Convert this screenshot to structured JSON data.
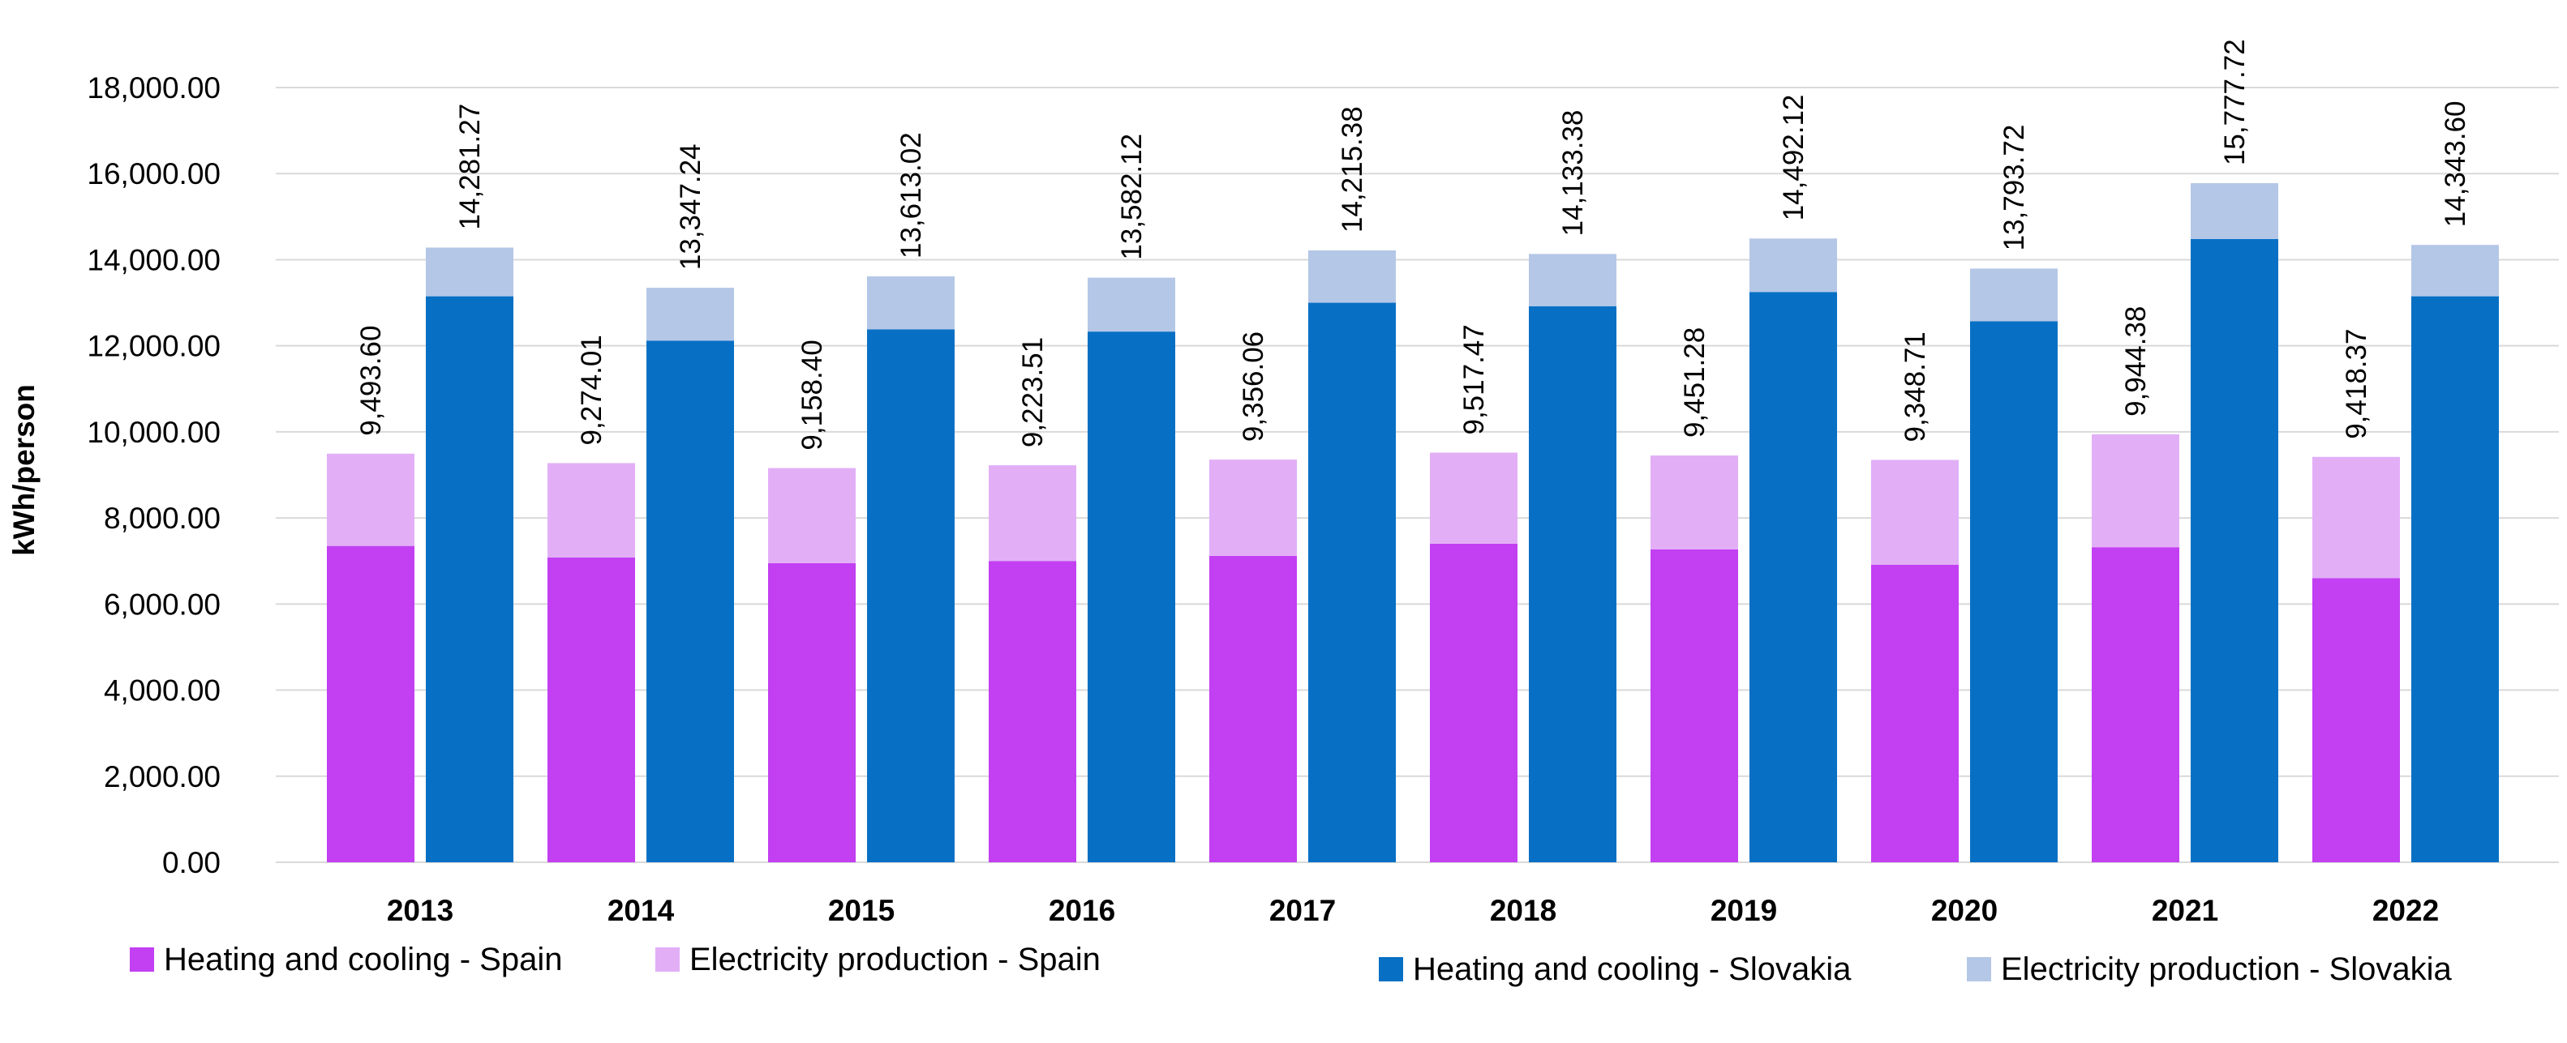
{
  "chart_data": {
    "type": "bar",
    "stacked": true,
    "ylabel": "kWh/person",
    "xlabel": "",
    "title": "",
    "ylim": [
      0,
      18000
    ],
    "y_ticks": [
      "0.00",
      "2,000.00",
      "4,000.00",
      "6,000.00",
      "8,000.00",
      "10,000.00",
      "12,000.00",
      "14,000.00",
      "16,000.00",
      "18,000.00"
    ],
    "y_tick_values": [
      0,
      2000,
      4000,
      6000,
      8000,
      10000,
      12000,
      14000,
      16000,
      18000
    ],
    "grid": true,
    "legend_position": "bottom",
    "categories": [
      "2013",
      "2014",
      "2015",
      "2016",
      "2017",
      "2018",
      "2019",
      "2020",
      "2021",
      "2022"
    ],
    "series": [
      {
        "name": "Heating and cooling - Spain",
        "color": "#c23ff2",
        "stack": "Spain",
        "values": [
          7350,
          7080,
          6950,
          7000,
          7120,
          7400,
          7270,
          6910,
          7320,
          6600
        ]
      },
      {
        "name": "Electricity production - Spain",
        "color": "#e2aff7",
        "stack": "Spain",
        "values": [
          2143.6,
          2194.01,
          2208.4,
          2223.51,
          2236.06,
          2117.47,
          2181.28,
          2438.71,
          2624.38,
          2818.37
        ]
      },
      {
        "name": "Heating and cooling - Slovakia",
        "color": "#0870c4",
        "stack": "Slovakia",
        "values": [
          13150,
          12120,
          12380,
          12330,
          13000,
          12920,
          13250,
          12570,
          14480,
          13150
        ]
      },
      {
        "name": "Electricity production - Slovakia",
        "color": "#b4c7e7",
        "stack": "Slovakia",
        "values": [
          1131.27,
          1227.24,
          1233.02,
          1252.12,
          1215.38,
          1213.38,
          1242.12,
          1223.72,
          1297.72,
          1193.6
        ]
      }
    ],
    "totals": {
      "Spain": [
        "9,493.60",
        "9,274.01",
        "9,158.40",
        "9,223.51",
        "9,356.06",
        "9,517.47",
        "9,451.28",
        "9,348.71",
        "9,944.38",
        "9,418.37"
      ],
      "Slovakia": [
        "14,281.27",
        "13,347.24",
        "13,613.02",
        "13,582.12",
        "14,215.38",
        "14,133.38",
        "14,492.12",
        "13,793.72",
        "15,777.72",
        "14,343.60"
      ]
    },
    "total_values": {
      "Spain": [
        9493.6,
        9274.01,
        9158.4,
        9223.51,
        9356.06,
        9517.47,
        9451.28,
        9348.71,
        9944.38,
        9418.37
      ],
      "Slovakia": [
        14281.27,
        13347.24,
        13613.02,
        13582.12,
        14215.38,
        14133.38,
        14492.12,
        13793.72,
        15777.72,
        14343.6
      ]
    }
  }
}
